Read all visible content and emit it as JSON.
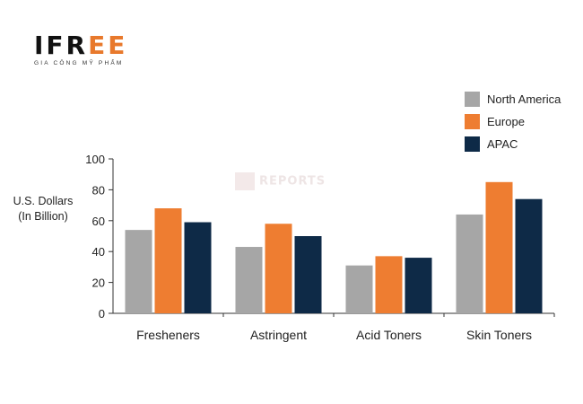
{
  "logo": {
    "mark_main": "IFR",
    "mark_accent": "EE",
    "tagline": "GIA CÔNG MỸ PHẨM"
  },
  "watermark": {
    "text": "REPORTS"
  },
  "chart_data": {
    "type": "bar",
    "title": "",
    "xlabel": "",
    "ylabel": [
      "U.S. Dollars",
      "(In Billion)"
    ],
    "ylim": [
      0,
      100
    ],
    "yticks": [
      0,
      20,
      40,
      60,
      80,
      100
    ],
    "categories": [
      "Fresheners",
      "Astringent",
      "Acid Toners",
      "Skin Toners"
    ],
    "series": [
      {
        "name": "North America",
        "color": "#a6a6a6",
        "values": [
          54,
          43,
          31,
          64
        ]
      },
      {
        "name": "Europe",
        "color": "#ee7d31",
        "values": [
          68,
          58,
          37,
          85
        ]
      },
      {
        "name": "APAC",
        "color": "#0e2a47",
        "values": [
          59,
          50,
          36,
          74
        ]
      }
    ],
    "legend_position": "top-right",
    "grid": false
  }
}
